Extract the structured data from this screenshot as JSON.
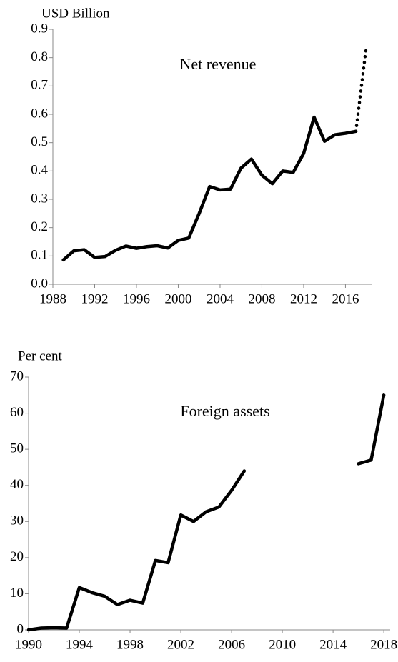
{
  "chart_data": [
    {
      "type": "line",
      "title": "Net revenue",
      "y_label": "USD Billion",
      "x": [
        1989,
        1990,
        1991,
        1992,
        1993,
        1994,
        1995,
        1996,
        1997,
        1998,
        1999,
        2000,
        2001,
        2002,
        2003,
        2004,
        2005,
        2006,
        2007,
        2008,
        2009,
        2010,
        2011,
        2012,
        2013,
        2014,
        2015,
        2016,
        2017,
        2018
      ],
      "series": [
        {
          "style": "solid",
          "color": "#000000",
          "values": [
            0.086,
            0.118,
            0.122,
            0.095,
            0.098,
            0.12,
            0.135,
            0.127,
            0.133,
            0.136,
            0.128,
            0.155,
            0.163,
            0.25,
            0.345,
            0.333,
            0.336,
            0.41,
            0.442,
            0.385,
            0.355,
            0.4,
            0.395,
            0.462,
            0.59,
            0.505,
            0.528,
            0.533,
            0.54,
            null
          ]
        },
        {
          "style": "dotted",
          "color": "#000000",
          "values": [
            null,
            null,
            null,
            null,
            null,
            null,
            null,
            null,
            null,
            null,
            null,
            null,
            null,
            null,
            null,
            null,
            null,
            null,
            null,
            null,
            null,
            null,
            null,
            null,
            null,
            null,
            null,
            null,
            0.54,
            0.84
          ]
        }
      ],
      "xlim": [
        1988,
        2018.5
      ],
      "xticks": [
        1988,
        1992,
        1996,
        2000,
        2004,
        2008,
        2012,
        2016
      ],
      "ylim": [
        0,
        0.9
      ],
      "yticks": [
        {
          "value": 0,
          "label": "0.0"
        },
        0.1,
        0.2,
        0.3,
        0.4,
        0.5,
        0.6,
        0.7,
        0.8,
        0.9
      ],
      "grid": false
    },
    {
      "type": "line",
      "title": "Foreign assets",
      "y_label": "Per cent",
      "x": [
        1990,
        1991,
        1992,
        1993,
        1994,
        1995,
        1996,
        1997,
        1998,
        1999,
        2000,
        2001,
        2002,
        2003,
        2004,
        2005,
        2006,
        2007,
        2008,
        2009,
        2010,
        2011,
        2012,
        2013,
        2014,
        2015,
        2016,
        2017,
        2018
      ],
      "series": [
        {
          "style": "solid",
          "color": "#000000",
          "values": [
            0,
            0.5,
            0.6,
            0.5,
            11.7,
            10.3,
            9.3,
            7,
            8.2,
            7.4,
            19.2,
            18.6,
            31.8,
            30,
            32.7,
            34,
            38.6,
            44,
            null,
            null,
            null,
            null,
            null,
            null,
            null,
            null,
            46,
            47,
            65
          ]
        },
        {
          "style": "dotted",
          "color": "#000000",
          "values": [
            null,
            null,
            null,
            null,
            null,
            null,
            null,
            null,
            null,
            null,
            null,
            null,
            null,
            null,
            null,
            null,
            null,
            44,
            null,
            null,
            null,
            null,
            null,
            null,
            null,
            null,
            46,
            null,
            null
          ]
        }
      ],
      "xlim": [
        1990,
        2018.5
      ],
      "xticks": [
        1990,
        1994,
        1998,
        2002,
        2006,
        2010,
        2014,
        2018
      ],
      "ylim": [
        0,
        70
      ],
      "yticks": [
        0,
        10,
        20,
        30,
        40,
        50,
        60,
        70
      ],
      "grid": false
    }
  ]
}
